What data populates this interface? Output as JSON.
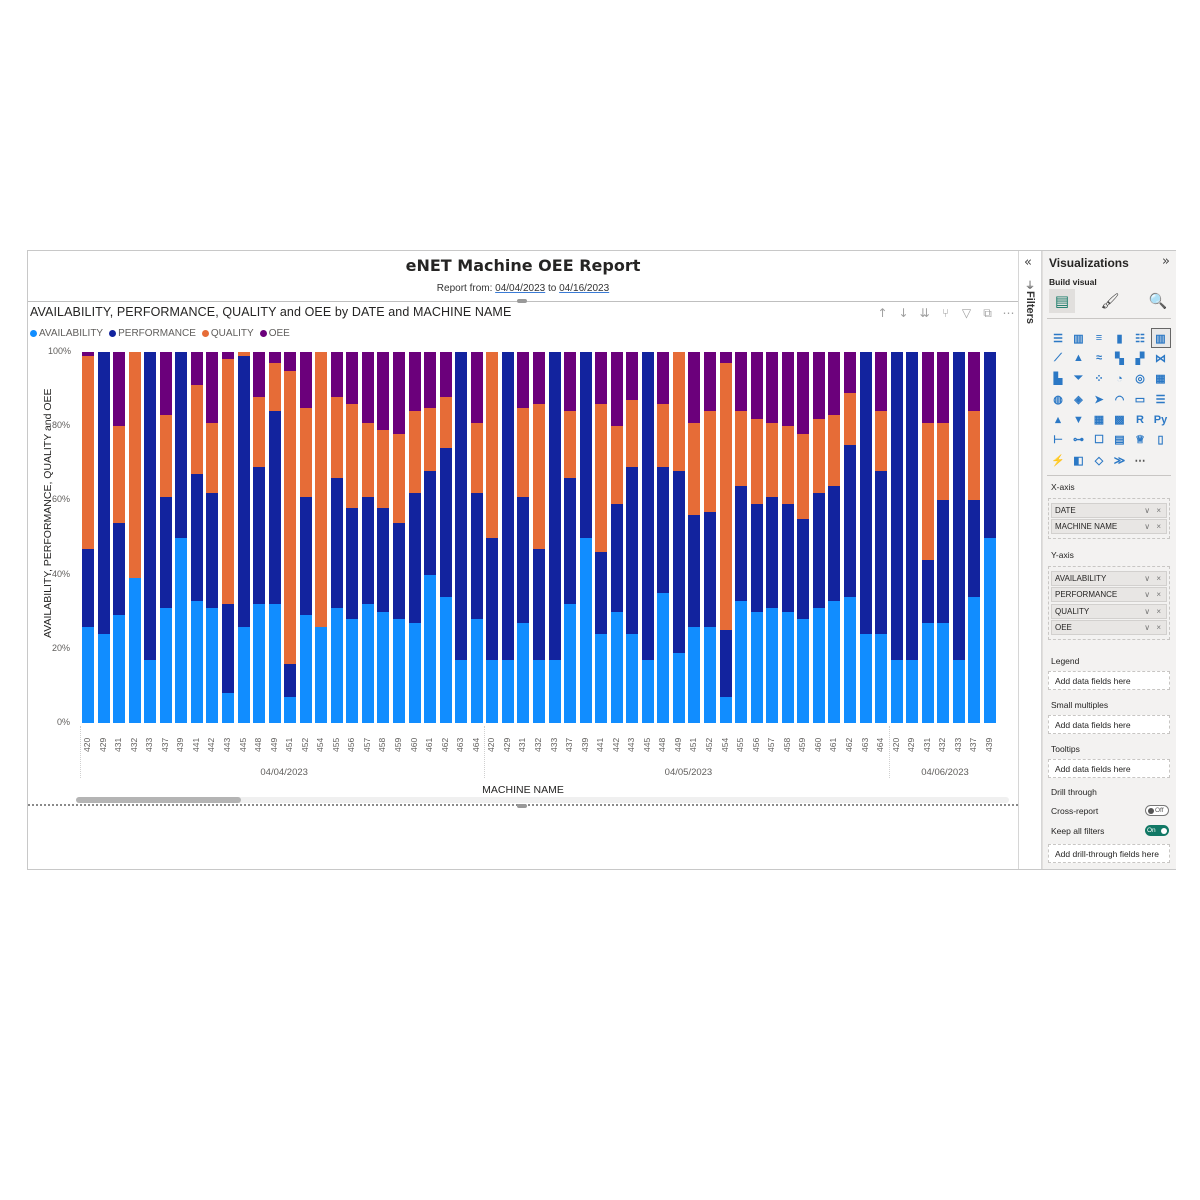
{
  "report": {
    "title": "eNET Machine OEE Report",
    "subtitle_prefix": "Report from: ",
    "date_from": "04/04/2023",
    "subtitle_mid": " to ",
    "date_to": "04/16/2023"
  },
  "visual": {
    "title": "AVAILABILITY, PERFORMANCE, QUALITY and OEE by DATE and MACHINE NAME",
    "toolbar_icons": [
      "drill-up-icon",
      "drill-down-icon",
      "expand-all-icon",
      "expand-hierarchy-icon",
      "filter-icon",
      "focus-mode-icon",
      "more-options-icon"
    ],
    "toolbar_glyphs": [
      "↑",
      "↓",
      "⇊",
      "⑂",
      "▽",
      "⧉",
      "⋯"
    ],
    "y_axis_title": "AVAILABILITY, PERFORMANCE, QUALITY and OEE",
    "x_axis_title": "MACHINE NAME",
    "y_ticks": [
      "100%",
      "80%",
      "60%",
      "40%",
      "20%",
      "0%"
    ]
  },
  "legend": [
    {
      "label": "AVAILABILITY",
      "color": "#118dff"
    },
    {
      "label": "PERFORMANCE",
      "color": "#12239e"
    },
    {
      "label": "QUALITY",
      "color": "#e66c37"
    },
    {
      "label": "OEE",
      "color": "#6b007b"
    }
  ],
  "chart_data": {
    "type": "bar",
    "stacked": "100%",
    "title": "AVAILABILITY, PERFORMANCE, QUALITY and OEE by DATE and MACHINE NAME",
    "xlabel": "MACHINE NAME",
    "ylabel": "AVAILABILITY, PERFORMANCE, QUALITY and OEE",
    "ylim": [
      0,
      100
    ],
    "y_tick_labels": [
      "0%",
      "20%",
      "40%",
      "60%",
      "80%",
      "100%"
    ],
    "legend_position": "top-left",
    "groups": [
      {
        "date": "04/04/2023",
        "machines": [
          "420",
          "429",
          "431",
          "432",
          "433",
          "437",
          "439",
          "441",
          "442",
          "443",
          "445",
          "448",
          "449",
          "451",
          "452",
          "454",
          "455",
          "456",
          "457",
          "458",
          "459",
          "460",
          "461",
          "462",
          "463",
          "464"
        ]
      },
      {
        "date": "04/05/2023",
        "machines": [
          "420",
          "429",
          "431",
          "432",
          "433",
          "437",
          "439",
          "441",
          "442",
          "443",
          "445",
          "448",
          "449",
          "451",
          "452",
          "454",
          "455",
          "456",
          "457",
          "458",
          "459",
          "460",
          "461",
          "462",
          "463",
          "464"
        ]
      },
      {
        "date": "04/06/2023",
        "machines": [
          "420",
          "429",
          "431",
          "432",
          "433",
          "437",
          "439"
        ]
      }
    ],
    "series": [
      {
        "name": "AVAILABILITY",
        "color": "#118dff",
        "values": [
          26,
          24,
          29,
          39,
          17,
          31,
          50,
          33,
          31,
          8,
          26,
          32,
          32,
          7,
          29,
          26,
          31,
          28,
          32,
          30,
          28,
          27,
          40,
          34,
          17,
          28,
          17,
          17,
          27,
          17,
          17,
          32,
          50,
          24,
          30,
          24,
          17,
          35,
          19,
          26,
          26,
          7,
          33,
          30,
          31,
          30,
          28,
          31,
          33,
          34,
          24,
          24,
          17,
          17,
          27,
          27,
          17,
          34,
          50
        ]
      },
      {
        "name": "PERFORMANCE",
        "color": "#12239e",
        "values": [
          21,
          76,
          25,
          0,
          83,
          30,
          50,
          34,
          31,
          24,
          73,
          37,
          52,
          9,
          32,
          0,
          35,
          30,
          29,
          28,
          26,
          35,
          28,
          40,
          83,
          34,
          33,
          83,
          34,
          30,
          83,
          34,
          50,
          22,
          29,
          45,
          83,
          34,
          49,
          30,
          31,
          18,
          31,
          29,
          30,
          29,
          27,
          31,
          31,
          41,
          76,
          44,
          83,
          83,
          17,
          33,
          83,
          26,
          50
        ]
      },
      {
        "name": "QUALITY",
        "color": "#e66c37",
        "values": [
          52,
          0,
          26,
          61,
          0,
          22,
          0,
          24,
          19,
          66,
          1,
          19,
          13,
          79,
          24,
          74,
          22,
          28,
          20,
          21,
          24,
          22,
          17,
          14,
          0,
          19,
          50,
          0,
          24,
          39,
          0,
          18,
          0,
          40,
          21,
          18,
          0,
          17,
          32,
          25,
          27,
          72,
          20,
          23,
          20,
          21,
          23,
          20,
          19,
          14,
          0,
          16,
          0,
          0,
          37,
          21,
          0,
          24,
          0
        ]
      },
      {
        "name": "OEE",
        "color": "#6b007b",
        "values": [
          1,
          0,
          20,
          0,
          0,
          17,
          0,
          9,
          19,
          2,
          0,
          12,
          3,
          5,
          15,
          0,
          12,
          14,
          19,
          21,
          22,
          16,
          15,
          12,
          0,
          19,
          0,
          0,
          15,
          14,
          0,
          16,
          0,
          14,
          20,
          13,
          0,
          14,
          0,
          19,
          16,
          3,
          16,
          18,
          19,
          20,
          22,
          18,
          17,
          11,
          0,
          16,
          0,
          0,
          19,
          19,
          0,
          16,
          0
        ]
      }
    ]
  },
  "scrollbar": {
    "thumb_position": "start"
  },
  "filters_pane": {
    "collapse_glyph": "«",
    "label": "Filters"
  },
  "viz_pane": {
    "title": "Visualizations",
    "expand_glyph": "»",
    "build_visual_label": "Build visual",
    "build_tabs": [
      {
        "name": "fields-tab",
        "glyph": "▤"
      },
      {
        "name": "format-tab",
        "glyph": "🖌"
      },
      {
        "name": "analytics-tab",
        "glyph": "🔍"
      }
    ],
    "viz_types": [
      {
        "name": "stacked-bar-chart",
        "glyph": "☰"
      },
      {
        "name": "stacked-column-chart",
        "glyph": "▥"
      },
      {
        "name": "clustered-bar-chart",
        "glyph": "≡"
      },
      {
        "name": "clustered-column-chart",
        "glyph": "▮"
      },
      {
        "name": "100-stacked-bar-chart",
        "glyph": "☷"
      },
      {
        "name": "100-stacked-column-chart",
        "glyph": "▥"
      },
      {
        "name": "line-chart",
        "glyph": "⟋"
      },
      {
        "name": "area-chart",
        "glyph": "▲"
      },
      {
        "name": "stacked-area-chart",
        "glyph": "≈"
      },
      {
        "name": "line-clustered-column-chart",
        "glyph": "▚"
      },
      {
        "name": "line-stacked-column-chart",
        "glyph": "▞"
      },
      {
        "name": "ribbon-chart",
        "glyph": "⋈"
      },
      {
        "name": "waterfall-chart",
        "glyph": "▙"
      },
      {
        "name": "funnel-chart",
        "glyph": "⏷"
      },
      {
        "name": "scatter-chart",
        "glyph": "⁘"
      },
      {
        "name": "pie-chart",
        "glyph": "◔"
      },
      {
        "name": "donut-chart",
        "glyph": "◎"
      },
      {
        "name": "treemap",
        "glyph": "▦"
      },
      {
        "name": "map",
        "glyph": "◍"
      },
      {
        "name": "filled-map",
        "glyph": "◈"
      },
      {
        "name": "azure-map",
        "glyph": "➤"
      },
      {
        "name": "gauge",
        "glyph": "◠"
      },
      {
        "name": "card",
        "glyph": "▭"
      },
      {
        "name": "multi-row-card",
        "glyph": "☰"
      },
      {
        "name": "kpi",
        "glyph": "▴"
      },
      {
        "name": "slicer",
        "glyph": "▼"
      },
      {
        "name": "table",
        "glyph": "▦"
      },
      {
        "name": "matrix",
        "glyph": "▩"
      },
      {
        "name": "r-script-visual",
        "glyph": "R"
      },
      {
        "name": "python-visual",
        "glyph": "Py"
      },
      {
        "name": "key-influencers",
        "glyph": "⊢"
      },
      {
        "name": "decomposition-tree",
        "glyph": "⊶"
      },
      {
        "name": "qna",
        "glyph": "☐"
      },
      {
        "name": "smart-narrative",
        "glyph": "▤"
      },
      {
        "name": "metrics",
        "glyph": "♕"
      },
      {
        "name": "paginated-report",
        "glyph": "▯"
      },
      {
        "name": "power-apps",
        "glyph": "⚡"
      },
      {
        "name": "power-automate",
        "glyph": "◧"
      },
      {
        "name": "diamond-visual",
        "glyph": "◇"
      },
      {
        "name": "chevron-visual",
        "glyph": "≫"
      },
      {
        "name": "more-visuals",
        "glyph": "⋯"
      }
    ],
    "x_axis_label": "X-axis",
    "x_axis_fields": [
      "DATE",
      "MACHINE NAME"
    ],
    "y_axis_label": "Y-axis",
    "y_axis_fields": [
      "AVAILABILITY",
      "PERFORMANCE",
      "QUALITY",
      "OEE"
    ],
    "legend_label": "Legend",
    "legend_placeholder": "Add data fields here",
    "small_multiples_label": "Small multiples",
    "small_multiples_placeholder": "Add data fields here",
    "tooltips_label": "Tooltips",
    "tooltips_placeholder": "Add data fields here",
    "drill_through_label": "Drill through",
    "cross_report_label": "Cross-report",
    "cross_report_state": "Off",
    "keep_filters_label": "Keep all filters",
    "keep_filters_state": "On",
    "drill_through_placeholder": "Add drill-through fields here",
    "field_controls": "∨ ×"
  }
}
